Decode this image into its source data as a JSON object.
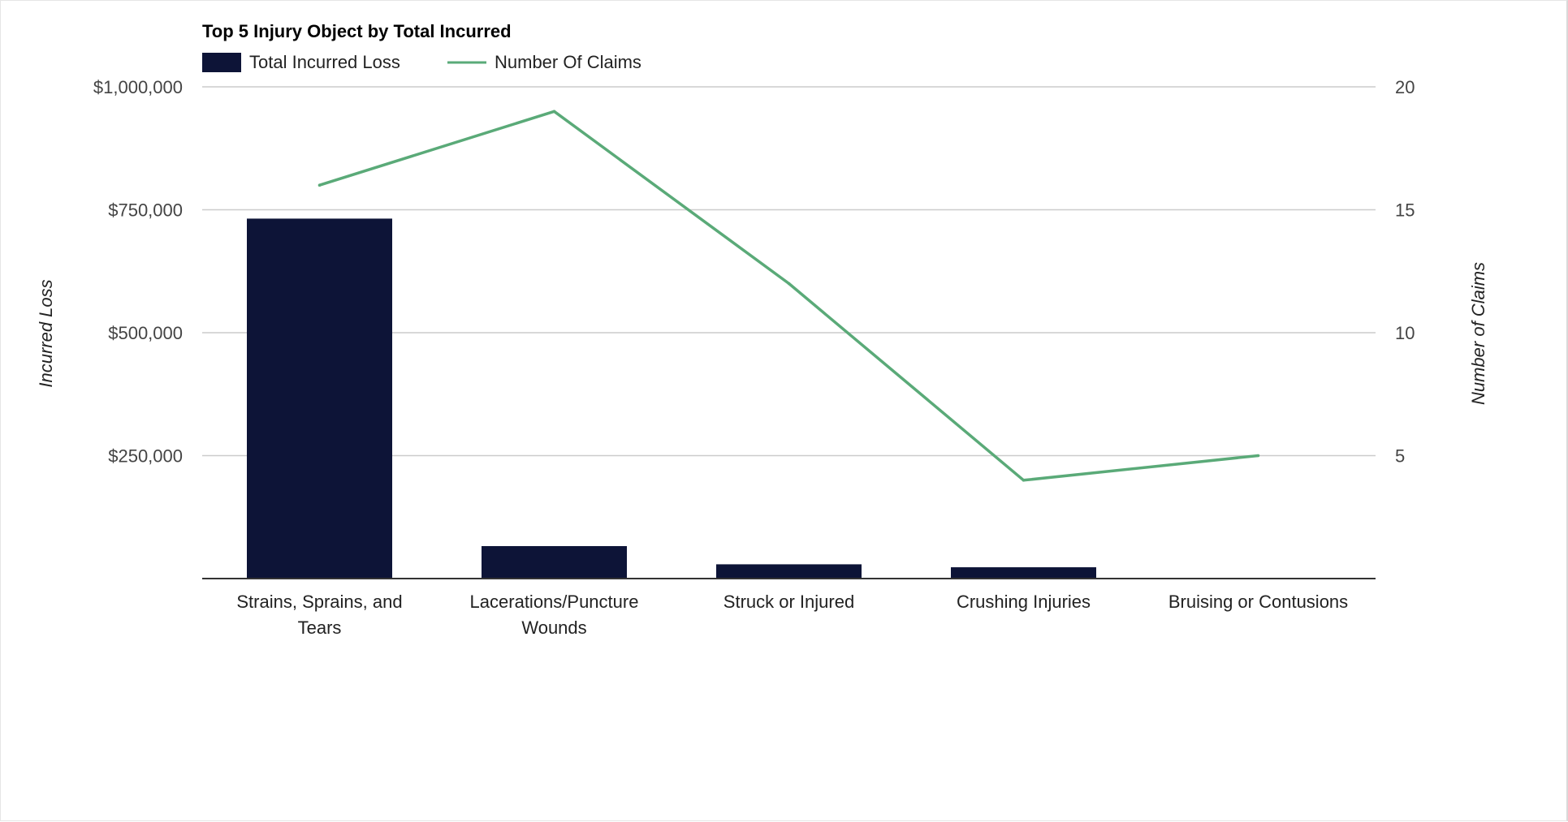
{
  "chart_data": {
    "type": "bar",
    "title": "Top 5 Injury Object by Total Incurred",
    "categories": [
      [
        "Strains, Sprains, and",
        "Tears"
      ],
      [
        "Lacerations/Puncture",
        "Wounds"
      ],
      [
        "Struck or Injured"
      ],
      [
        "Crushing Injuries"
      ],
      [
        "Bruising or Contusions"
      ]
    ],
    "series": [
      {
        "name": "Total Incurred Loss",
        "type": "bar",
        "axis": "left",
        "color": "#0d1437",
        "values": [
          732000,
          66000,
          29000,
          23000,
          0
        ]
      },
      {
        "name": "Number Of Claims",
        "type": "line",
        "axis": "right",
        "color": "#5aaa78",
        "values": [
          16,
          19,
          12,
          4,
          5
        ]
      }
    ],
    "y_left": {
      "label": "Incurred Loss",
      "ylim": [
        0,
        1000000
      ],
      "ticks": [
        {
          "value": 250000,
          "label": "$250,000"
        },
        {
          "value": 500000,
          "label": "$500,000"
        },
        {
          "value": 750000,
          "label": "$750,000"
        },
        {
          "value": 1000000,
          "label": "$1,000,000"
        }
      ]
    },
    "y_right": {
      "label": "Number of Claims",
      "ylim": [
        0,
        20
      ],
      "ticks": [
        {
          "value": 5,
          "label": "5"
        },
        {
          "value": 10,
          "label": "10"
        },
        {
          "value": 15,
          "label": "15"
        },
        {
          "value": 20,
          "label": "20"
        }
      ]
    },
    "grid": true,
    "legend": "top-left"
  }
}
